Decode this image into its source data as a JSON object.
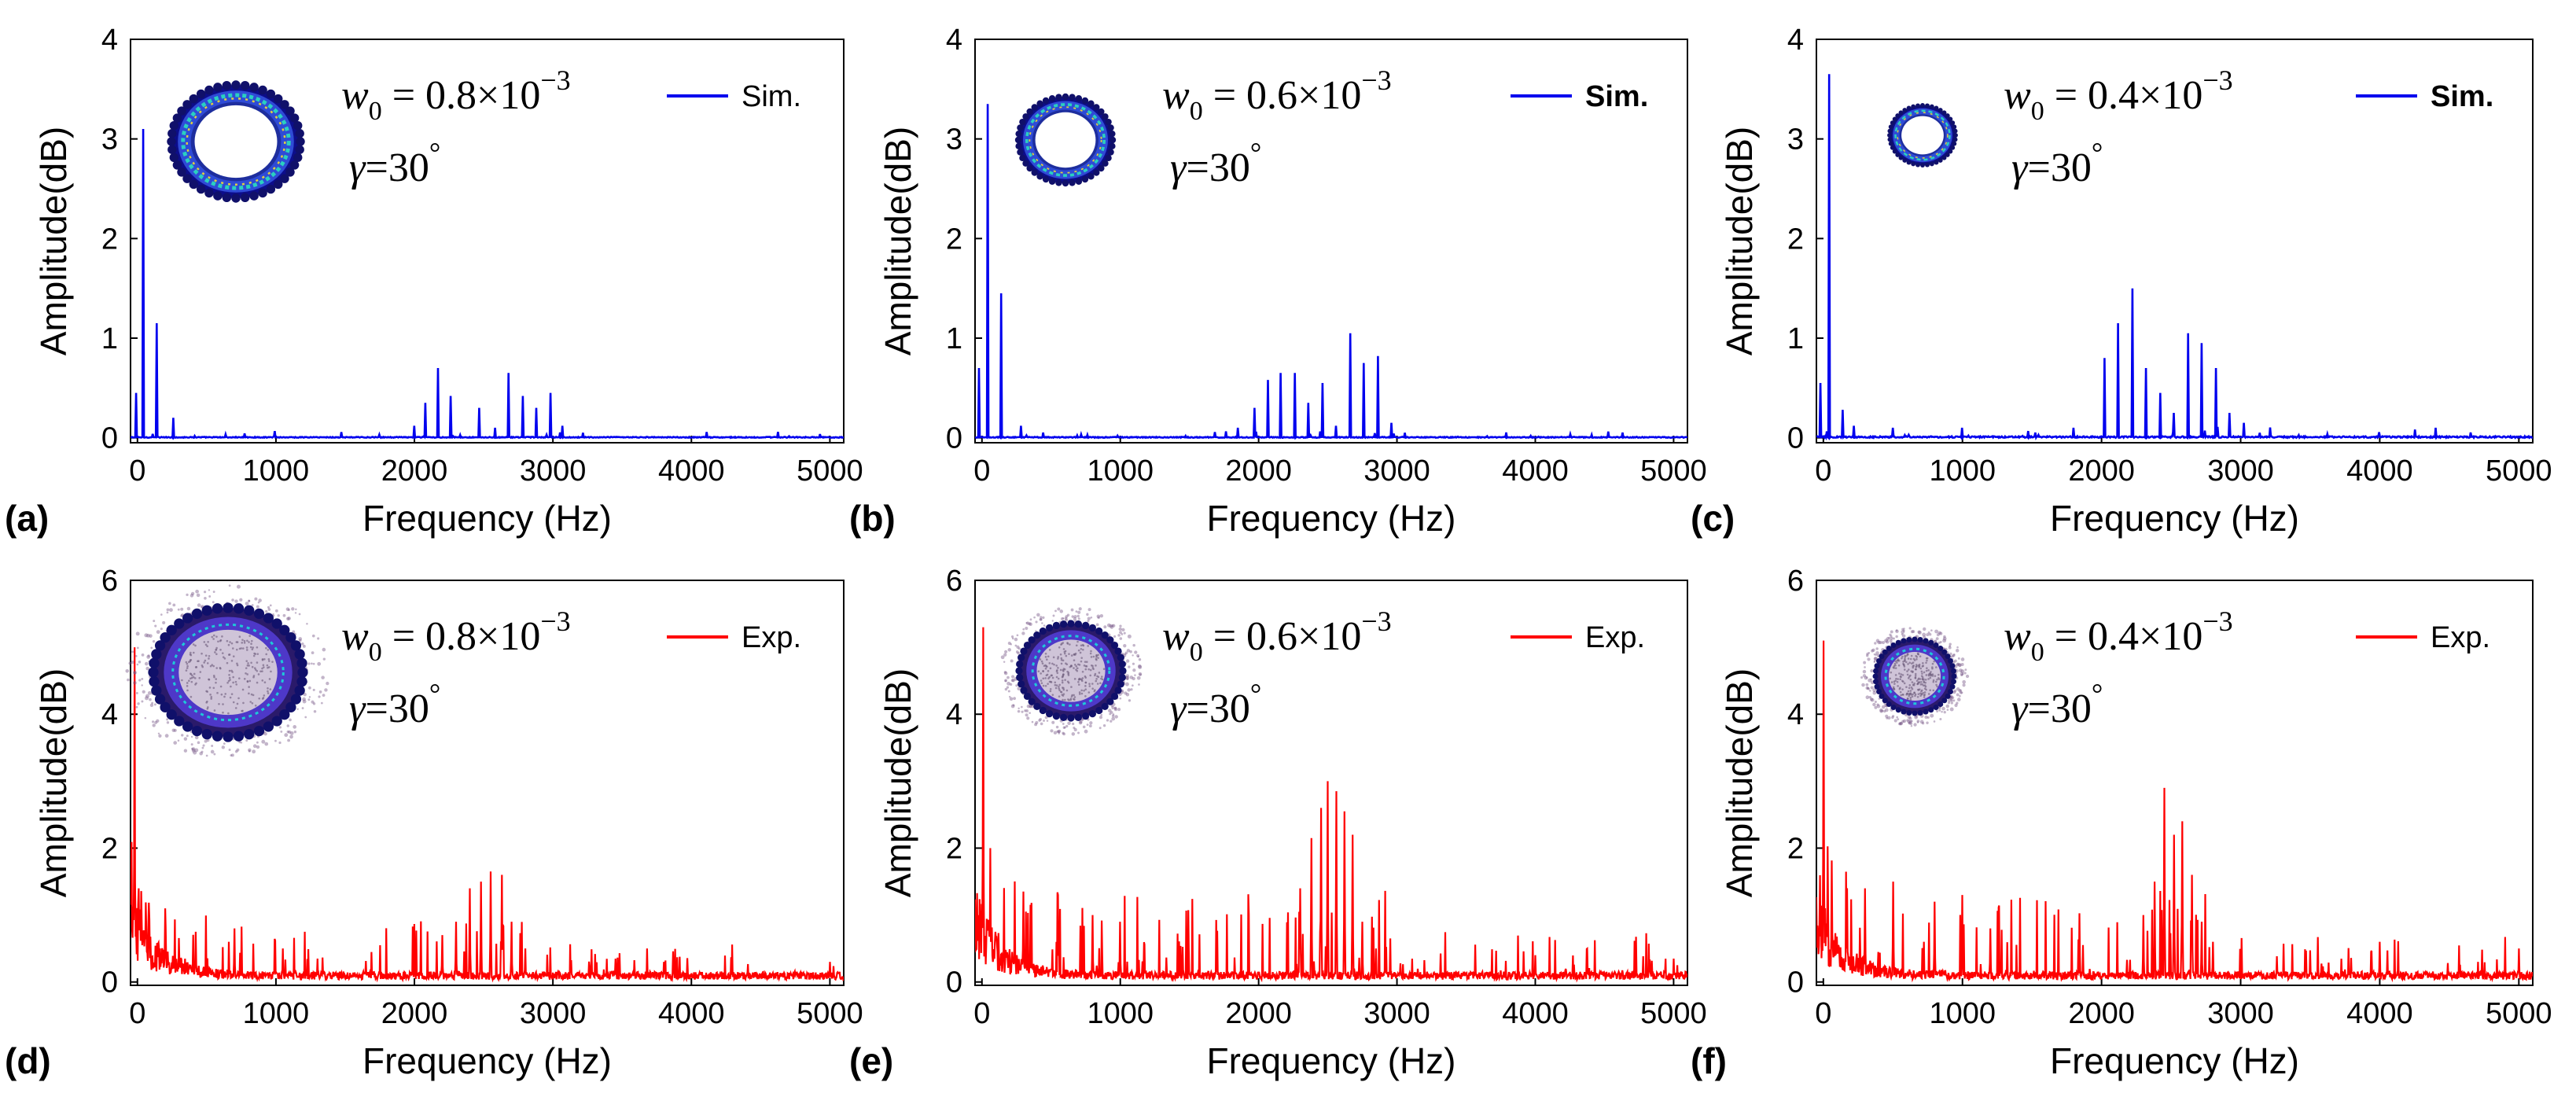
{
  "chart_data": [
    {
      "panel": "(a)",
      "type": "line",
      "source": "Sim.",
      "xlabel": "Frequency (Hz)",
      "ylabel": "Amplitude(dB)",
      "xlim": [
        -50,
        5100
      ],
      "ylim": [
        -0.05,
        4
      ],
      "xticks": [
        "0",
        "1000",
        "2000",
        "3000",
        "4000",
        "5000"
      ],
      "yticks": [
        "0",
        "1",
        "2",
        "3",
        "4"
      ],
      "annotation": {
        "w0_mantissa": "0.8",
        "w0_exponent": "−3",
        "gamma": "30"
      },
      "legend": "Sim.",
      "color": "#0000ee",
      "peaks": [
        [
          -10,
          0.45
        ],
        [
          40,
          3.1
        ],
        [
          140,
          1.15
        ],
        [
          260,
          0.2
        ],
        [
          2000,
          0.12
        ],
        [
          2080,
          0.35
        ],
        [
          2170,
          0.7
        ],
        [
          2260,
          0.42
        ],
        [
          2470,
          0.3
        ],
        [
          2580,
          0.1
        ],
        [
          2680,
          0.65
        ],
        [
          2780,
          0.42
        ],
        [
          2880,
          0.3
        ],
        [
          2980,
          0.45
        ],
        [
          3070,
          0.12
        ]
      ],
      "noise": 0.03
    },
    {
      "panel": "(b)",
      "type": "line",
      "source": "Sim.",
      "xlabel": "Frequency (Hz)",
      "ylabel": "Amplitude(dB)",
      "xlim": [
        -50,
        5100
      ],
      "ylim": [
        -0.05,
        4
      ],
      "xticks": [
        "0",
        "1000",
        "2000",
        "3000",
        "4000",
        "5000"
      ],
      "yticks": [
        "0",
        "1",
        "2",
        "3",
        "4"
      ],
      "annotation": {
        "w0_mantissa": "0.6",
        "w0_exponent": "−3",
        "gamma": "30"
      },
      "legend": "Sim.",
      "color": "#0000ee",
      "peaks": [
        [
          -20,
          0.7
        ],
        [
          40,
          3.35
        ],
        [
          140,
          1.45
        ],
        [
          280,
          0.12
        ],
        [
          1850,
          0.1
        ],
        [
          1970,
          0.3
        ],
        [
          2070,
          0.58
        ],
        [
          2160,
          0.65
        ],
        [
          2260,
          0.65
        ],
        [
          2360,
          0.35
        ],
        [
          2460,
          0.55
        ],
        [
          2560,
          0.12
        ],
        [
          2660,
          1.05
        ],
        [
          2760,
          0.75
        ],
        [
          2860,
          0.82
        ],
        [
          2960,
          0.15
        ],
        [
          3060,
          0.05
        ]
      ],
      "noise": 0.03
    },
    {
      "panel": "(c)",
      "type": "line",
      "source": "Sim.",
      "xlabel": "Frequency (Hz)",
      "ylabel": "Amplitude(dB)",
      "xlim": [
        -50,
        5100
      ],
      "ylim": [
        -0.05,
        4
      ],
      "xticks": [
        "0",
        "1000",
        "2000",
        "3000",
        "4000",
        "5000"
      ],
      "yticks": [
        "0",
        "1",
        "2",
        "3",
        "4"
      ],
      "annotation": {
        "w0_mantissa": "0.4",
        "w0_exponent": "−3",
        "gamma": "30"
      },
      "legend": "Sim.",
      "color": "#0000ee",
      "peaks": [
        [
          -20,
          0.55
        ],
        [
          40,
          3.65
        ],
        [
          140,
          0.28
        ],
        [
          220,
          0.12
        ],
        [
          500,
          0.1
        ],
        [
          1000,
          0.1
        ],
        [
          1800,
          0.1
        ],
        [
          2020,
          0.8
        ],
        [
          2120,
          1.15
        ],
        [
          2220,
          1.5
        ],
        [
          2320,
          0.7
        ],
        [
          2420,
          0.45
        ],
        [
          2520,
          0.25
        ],
        [
          2620,
          1.05
        ],
        [
          2720,
          0.95
        ],
        [
          2820,
          0.7
        ],
        [
          2920,
          0.25
        ],
        [
          3020,
          0.15
        ],
        [
          4400,
          0.1
        ]
      ],
      "noise": 0.05
    },
    {
      "panel": "(d)",
      "type": "line",
      "source": "Exp.",
      "xlabel": "Frequency (Hz)",
      "ylabel": "Amplitude(dB)",
      "xlim": [
        -50,
        5100
      ],
      "ylim": [
        -0.05,
        6
      ],
      "xticks": [
        "0",
        "1000",
        "2000",
        "3000",
        "4000",
        "5000"
      ],
      "yticks": [
        "0",
        "2",
        "4",
        "6"
      ],
      "annotation": {
        "w0_mantissa": "0.8",
        "w0_exponent": "−3",
        "gamma": "30"
      },
      "legend": "Exp.",
      "color": "#ff0000",
      "peaks": [
        [
          -20,
          5.0
        ],
        [
          10,
          1.4
        ],
        [
          80,
          0.9
        ],
        [
          200,
          1.1
        ],
        [
          420,
          0.75
        ],
        [
          700,
          0.8
        ],
        [
          1050,
          0.5
        ],
        [
          1300,
          0.35
        ],
        [
          2200,
          0.7
        ],
        [
          2300,
          0.9
        ],
        [
          2400,
          1.4
        ],
        [
          2480,
          1.5
        ],
        [
          2550,
          1.65
        ],
        [
          2630,
          1.6
        ],
        [
          2700,
          0.9
        ],
        [
          2800,
          0.5
        ],
        [
          3800,
          0.3
        ],
        [
          5000,
          0.3
        ]
      ],
      "noise": 0.35
    },
    {
      "panel": "(e)",
      "type": "line",
      "source": "Exp.",
      "xlabel": "Frequency (Hz)",
      "ylabel": "Amplitude(dB)",
      "xlim": [
        -50,
        5100
      ],
      "ylim": [
        -0.05,
        6
      ],
      "xticks": [
        "0",
        "1000",
        "2000",
        "3000",
        "4000",
        "5000"
      ],
      "yticks": [
        "0",
        "2",
        "4",
        "6"
      ],
      "annotation": {
        "w0_mantissa": "0.6",
        "w0_exponent": "−3",
        "gamma": "30"
      },
      "legend": "Exp.",
      "color": "#ff0000",
      "peaks": [
        [
          10,
          5.3
        ],
        [
          60,
          2.0
        ],
        [
          300,
          1.35
        ],
        [
          550,
          1.3
        ],
        [
          800,
          1.0
        ],
        [
          1000,
          0.9
        ],
        [
          2300,
          1.4
        ],
        [
          2380,
          2.15
        ],
        [
          2450,
          2.6
        ],
        [
          2500,
          3.0
        ],
        [
          2560,
          2.85
        ],
        [
          2620,
          2.55
        ],
        [
          2680,
          2.2
        ],
        [
          2750,
          0.9
        ],
        [
          2850,
          0.5
        ],
        [
          4000,
          0.4
        ],
        [
          5000,
          0.35
        ]
      ],
      "noise": 0.5
    },
    {
      "panel": "(f)",
      "type": "line",
      "source": "Exp.",
      "xlabel": "Frequency (Hz)",
      "ylabel": "Amplitude(dB)",
      "xlim": [
        -50,
        5100
      ],
      "ylim": [
        -0.05,
        6
      ],
      "xticks": [
        "0",
        "1000",
        "2000",
        "3000",
        "4000",
        "5000"
      ],
      "yticks": [
        "0",
        "2",
        "4",
        "6"
      ],
      "annotation": {
        "w0_mantissa": "0.4",
        "w0_exponent": "−3",
        "gamma": "30"
      },
      "legend": "Exp.",
      "color": "#ff0000",
      "peaks": [
        [
          0,
          5.1
        ],
        [
          60,
          1.6
        ],
        [
          300,
          1.4
        ],
        [
          500,
          1.5
        ],
        [
          800,
          1.2
        ],
        [
          1000,
          1.3
        ],
        [
          1200,
          0.8
        ],
        [
          2300,
          1.0
        ],
        [
          2380,
          1.5
        ],
        [
          2450,
          2.9
        ],
        [
          2520,
          2.2
        ],
        [
          2580,
          2.4
        ],
        [
          2650,
          1.6
        ],
        [
          2720,
          0.9
        ],
        [
          2800,
          0.6
        ],
        [
          4000,
          0.6
        ],
        [
          5000,
          0.5
        ]
      ],
      "noise": 0.5
    }
  ]
}
